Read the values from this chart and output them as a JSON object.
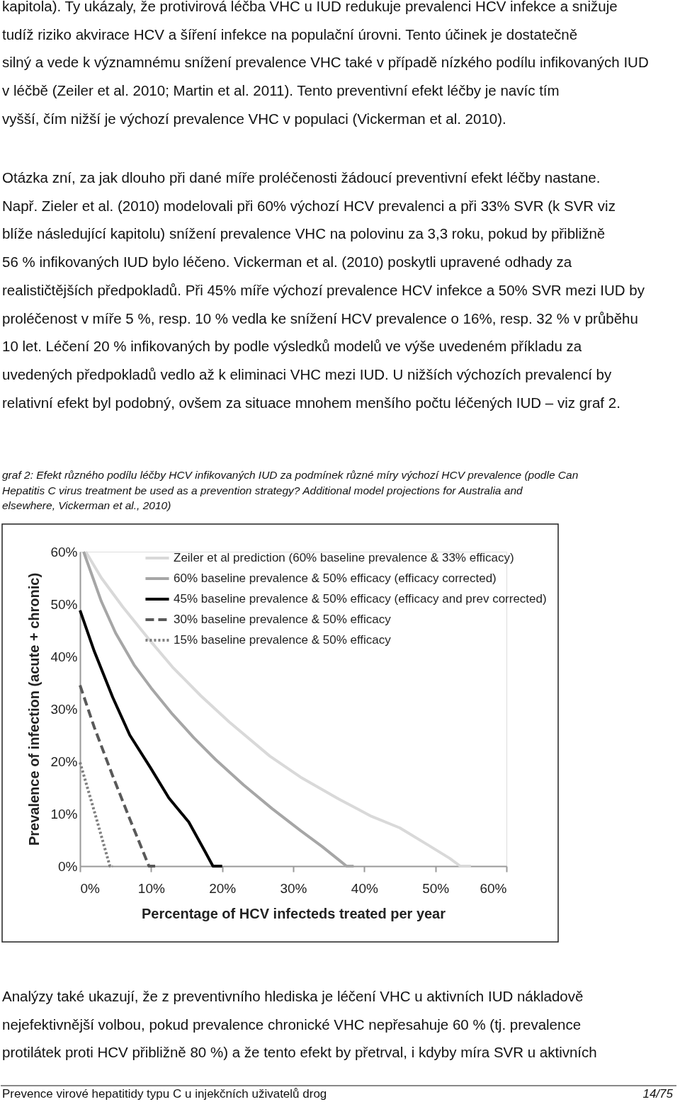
{
  "chart_data": {
    "type": "line",
    "xlabel": "Percentage of HCV infecteds treated per year",
    "ylabel": "Prevalence of infection (acute + chronic)",
    "xlim": [
      0,
      60
    ],
    "ylim": [
      0,
      60
    ],
    "xticks": [
      {
        "value": 0,
        "label": "0%"
      },
      {
        "value": 10,
        "label": "10%"
      },
      {
        "value": 20,
        "label": "20%"
      },
      {
        "value": 30,
        "label": "30%"
      },
      {
        "value": 40,
        "label": "40%"
      },
      {
        "value": 50,
        "label": "50%"
      },
      {
        "value": 60,
        "label": "60%"
      }
    ],
    "yticks": [
      {
        "value": 0,
        "label": "0%"
      },
      {
        "value": 10,
        "label": "10%"
      },
      {
        "value": 20,
        "label": "20%"
      },
      {
        "value": 30,
        "label": "30%"
      },
      {
        "value": 40,
        "label": "40%"
      },
      {
        "value": 50,
        "label": "50%"
      },
      {
        "value": 60,
        "label": "60%"
      }
    ],
    "grid": false,
    "legend": "top",
    "marker": "none",
    "series": [
      {
        "name": "Zeiler et al prediction (60% baseline prevalence & 33% efficacy)",
        "color": "#d9d9d9",
        "line_style": "solid",
        "x": [
          0.8,
          3,
          6,
          9.5,
          13,
          17,
          21,
          26.7,
          31,
          36.4,
          41,
          45,
          49,
          52,
          53.5,
          55
        ],
        "values": [
          60,
          55,
          49.5,
          43.6,
          38,
          32.5,
          27.5,
          21,
          17,
          12.8,
          9.5,
          7.3,
          4,
          1.5,
          0,
          0
        ]
      },
      {
        "name": "60% baseline prevalence & 50% efficacy (efficacy corrected)",
        "color": "#a6a6a6",
        "line_style": "solid",
        "x": [
          0.5,
          3,
          5,
          7.6,
          10,
          13,
          16,
          19.1,
          23,
          27,
          31,
          34,
          36.4,
          37.5,
          38.5
        ],
        "values": [
          60,
          50.5,
          44.5,
          38.4,
          34,
          29,
          24.5,
          20.3,
          15.5,
          11,
          6.8,
          3.8,
          1.2,
          0,
          0
        ]
      },
      {
        "name": "45% baseline prevalence & 50% efficacy (efficacy and prev corrected)",
        "color": "#000000",
        "line_style": "solid",
        "x": [
          0,
          2,
          4.6,
          7,
          9.9,
          12.5,
          15.3,
          17.5,
          18.7,
          20
        ],
        "values": [
          48.8,
          41,
          32.2,
          25,
          18.8,
          13,
          8.4,
          3,
          0,
          0
        ]
      },
      {
        "name": "30% baseline prevalence & 50% efficacy",
        "color": "#595959",
        "line_style": "dashed",
        "x": [
          0,
          2,
          4.6,
          7,
          9.7,
          10.7
        ],
        "values": [
          34.5,
          26.5,
          17.2,
          9,
          0,
          0
        ]
      },
      {
        "name": "15% baseline prevalence & 50% efficacy",
        "color": "#7f7f7f",
        "line_style": "dotted",
        "x": [
          0,
          2,
          4.2,
          4.6
        ],
        "values": [
          19.8,
          10.5,
          0,
          0
        ]
      }
    ],
    "annotations": [
      "kapitola). Ty ukázaly, že protivirová léčba VHC u IUD redukuje prevalenci HCV infekce a snižuje tudíž riziko akvirace HCV a šíření infekce na populační úrovni. Tento účinek je dostatečně silný a vede k významnému snížení prevalence VHC také v případě nízkého podílu infikovaných IUD v léčbě (Zeiler et al. 2010; Martin et al. 2011). Tento preventivní efekt léčby je navíc tím vyšší, čím nižší je výchozí prevalence VHC v populaci (Vickerman et al. 2010).",
      "Otázka zní, za jak dlouho při dané míře proléčenosti žádoucí preventivní efekt léčby nastane. Např. Zieler et al. (2010) modelovali při 60% výchozí HCV prevalenci a při 33% SVR (k SVR viz blíže následující kapitolu) snížení prevalence VHC na polovinu za 3,3 roku, pokud by přibližně 56 % infikovaných IUD bylo léčeno. Vickerman et al. (2010) poskytli upravené odhady za realističtějších předpokladů. Při 45% míře výchozí prevalence HCV infekce a 50% SVR mezi IUD by proléčenost v míře 5 %, resp. 10 % vedla ke snížení HCV prevalence o 16%, resp. 32 % v průběhu 10 let. Léčení 20 % infikovaných by podle výsledků modelů ve výše uvedeném příkladu za uvedených předpokladů vedlo až k eliminaci VHC mezi IUD. U nižších výchozích prevalencí by relativní efekt byl podobný, ovšem za situace mnohem menšího počtu léčených IUD – viz graf 2.",
      "graf 2: Efekt různého podílu léčby HCV infikovaných IUD za podmínek různé míry výchozí HCV prevalence (podle Can Hepatitis C virus treatment be used as a prevention strategy? Additional model projections for Australia and elsewhere, Vickerman et al., 2010)",
      "Analýzy také ukazují, že z preventivního hlediska je léčení VHC u aktivních IUD nákladově nejefektivnější volbou, pokud prevalence chronické VHC nepřesahuje 60 % (tj. prevalence protilátek proti HCV přibližně 80 %) a že tento efekt by přetrval, i kdyby míra SVR u aktivních",
      "Prevence virové hepatitidy typu C u injekčních uživatelů drog",
      "14/75"
    ]
  }
}
